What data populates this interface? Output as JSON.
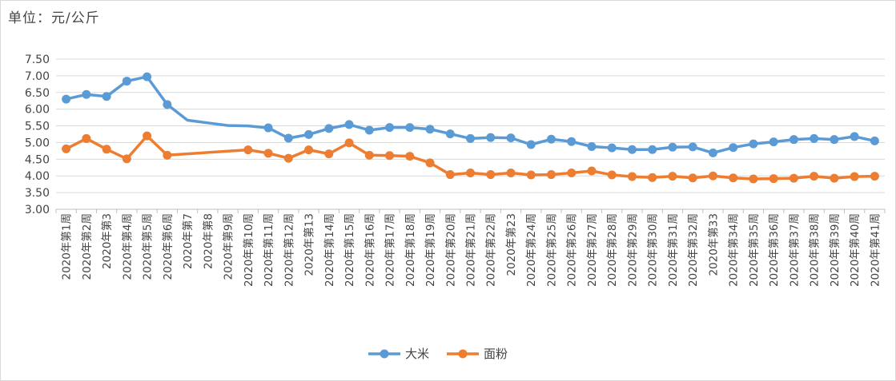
{
  "unit_label": "单位：元/公斤",
  "colors": {
    "rice": "#5b9bd5",
    "flour": "#ed7d31",
    "grid": "#d9d9d9",
    "axis": "#bfbfbf"
  },
  "chart_data": {
    "type": "line",
    "title": "",
    "xlabel": "",
    "ylabel": "",
    "ylim": [
      3.0,
      7.5
    ],
    "yticks": [
      "3.00",
      "3.50",
      "4.00",
      "4.50",
      "5.00",
      "5.50",
      "6.00",
      "6.50",
      "7.00",
      "7.50"
    ],
    "grid": true,
    "legend_position": "bottom",
    "categories": [
      "2020年第1周",
      "2020年第2周",
      "2020年第3",
      "2020年第4周",
      "2020年第5周",
      "2020年第6周",
      "2020年第7",
      "2020年第8",
      "2020年第9周",
      "2020年第10周",
      "2020年第11周",
      "2020年第12周",
      "2020年第13",
      "2020年第14周",
      "2020年第15周",
      "2020年第16周",
      "2020年第17周",
      "2020年第18周",
      "2020年第19周",
      "2020年第20周",
      "2020年第21周",
      "2020年第22周",
      "2020年第23",
      "2020年第24周",
      "2020年第25周",
      "2020年第26周",
      "2020年第27周",
      "2020年第28周",
      "2020年第29周",
      "2020年第30周",
      "2020年第31周",
      "2020年第32周",
      "2020年第33",
      "2020年第34周",
      "2020年第35周",
      "2020年第36周",
      "2020年第37周",
      "2020年第38周",
      "2020年第39周",
      "2020年第40周",
      "2020年第41周"
    ],
    "series": [
      {
        "name": "大米",
        "values": [
          6.3,
          6.44,
          6.38,
          6.84,
          6.97,
          6.14,
          null,
          null,
          null,
          null,
          5.44,
          5.13,
          5.24,
          5.42,
          5.54,
          5.37,
          5.45,
          5.45,
          5.4,
          5.26,
          5.12,
          5.15,
          5.14,
          4.94,
          5.1,
          5.03,
          4.88,
          4.84,
          4.79,
          4.79,
          4.86,
          4.87,
          4.69,
          4.85,
          4.96,
          5.02,
          5.09,
          5.12,
          5.09,
          5.18,
          5.05
        ],
        "rendered_points": [
          [
            0,
            6.3
          ],
          [
            1,
            6.44
          ],
          [
            2,
            6.38
          ],
          [
            3,
            6.84
          ],
          [
            4,
            6.97
          ],
          [
            5,
            6.14
          ],
          [
            6,
            5.67
          ],
          [
            7,
            5.59
          ],
          [
            8,
            5.51
          ],
          [
            9,
            5.5
          ],
          [
            10,
            5.44
          ],
          [
            11,
            5.13
          ],
          [
            12,
            5.24
          ],
          [
            13,
            5.42
          ],
          [
            14,
            5.54
          ],
          [
            15,
            5.37
          ],
          [
            16,
            5.45
          ],
          [
            17,
            5.45
          ],
          [
            18,
            5.4
          ],
          [
            19,
            5.26
          ],
          [
            20,
            5.12
          ],
          [
            21,
            5.15
          ],
          [
            22,
            5.14
          ],
          [
            23,
            4.94
          ],
          [
            24,
            5.1
          ],
          [
            25,
            5.03
          ],
          [
            26,
            4.88
          ],
          [
            27,
            4.84
          ],
          [
            28,
            4.79
          ],
          [
            29,
            4.79
          ],
          [
            30,
            4.86
          ],
          [
            31,
            4.87
          ],
          [
            32,
            4.69
          ],
          [
            33,
            4.85
          ],
          [
            34,
            4.96
          ],
          [
            35,
            5.02
          ],
          [
            36,
            5.09
          ],
          [
            37,
            5.12
          ],
          [
            38,
            5.09
          ],
          [
            39,
            5.18
          ],
          [
            40,
            5.05
          ]
        ]
      },
      {
        "name": "面粉",
        "values": [
          4.81,
          5.12,
          4.8,
          4.51,
          5.2,
          4.62,
          null,
          null,
          null,
          4.78,
          4.68,
          4.53,
          4.78,
          4.66,
          4.99,
          4.62,
          4.61,
          4.59,
          4.39,
          4.04,
          4.09,
          4.04,
          4.09,
          4.03,
          4.04,
          4.09,
          4.15,
          4.03,
          3.98,
          3.95,
          3.99,
          3.94,
          4.0,
          3.94,
          3.91,
          3.92,
          3.93,
          3.99,
          3.93,
          3.98,
          3.99
        ]
      }
    ]
  }
}
